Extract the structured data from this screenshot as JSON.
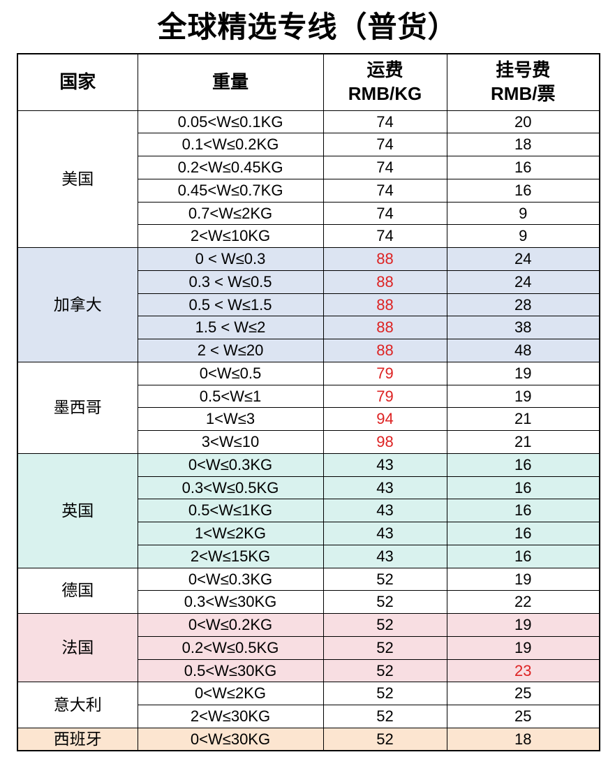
{
  "title": "全球精选专线（普货）",
  "header": {
    "country": "国家",
    "weight": "重量",
    "rate_line1": "运费",
    "rate_line2": "RMB/KG",
    "reg_line1": "挂号费",
    "reg_line2": "RMB/票"
  },
  "colors": {
    "red_text": "#dd2222",
    "canada_bg": "#dce4f2",
    "uk_bg": "#d9f2ee",
    "france_bg": "#f8dee2",
    "spain_bg": "#fce5d0",
    "default_bg": "#ffffff",
    "border": "#000000"
  },
  "groups": [
    {
      "country": "美国",
      "bg": "#ffffff",
      "rows": [
        {
          "weight": "0.05<W≤0.1KG",
          "rate": "74",
          "rate_red": false,
          "reg": "20",
          "reg_red": false
        },
        {
          "weight": "0.1<W≤0.2KG",
          "rate": "74",
          "rate_red": false,
          "reg": "18",
          "reg_red": false
        },
        {
          "weight": "0.2<W≤0.45KG",
          "rate": "74",
          "rate_red": false,
          "reg": "16",
          "reg_red": false
        },
        {
          "weight": "0.45<W≤0.7KG",
          "rate": "74",
          "rate_red": false,
          "reg": "16",
          "reg_red": false
        },
        {
          "weight": "0.7<W≤2KG",
          "rate": "74",
          "rate_red": false,
          "reg": "9",
          "reg_red": false
        },
        {
          "weight": "2<W≤10KG",
          "rate": "74",
          "rate_red": false,
          "reg": "9",
          "reg_red": false
        }
      ]
    },
    {
      "country": "加拿大",
      "bg": "#dce4f2",
      "rows": [
        {
          "weight": "0 < W≤0.3",
          "rate": "88",
          "rate_red": true,
          "reg": "24",
          "reg_red": false
        },
        {
          "weight": "0.3 < W≤0.5",
          "rate": "88",
          "rate_red": true,
          "reg": "24",
          "reg_red": false
        },
        {
          "weight": "0.5 < W≤1.5",
          "rate": "88",
          "rate_red": true,
          "reg": "28",
          "reg_red": false
        },
        {
          "weight": "1.5 < W≤2",
          "rate": "88",
          "rate_red": true,
          "reg": "38",
          "reg_red": false
        },
        {
          "weight": "2 < W≤20",
          "rate": "88",
          "rate_red": true,
          "reg": "48",
          "reg_red": false
        }
      ]
    },
    {
      "country": "墨西哥",
      "bg": "#ffffff",
      "rows": [
        {
          "weight": "0<W≤0.5",
          "rate": "79",
          "rate_red": true,
          "reg": "19",
          "reg_red": false
        },
        {
          "weight": "0.5<W≤1",
          "rate": "79",
          "rate_red": true,
          "reg": "19",
          "reg_red": false
        },
        {
          "weight": "1<W≤3",
          "rate": "94",
          "rate_red": true,
          "reg": "21",
          "reg_red": false
        },
        {
          "weight": "3<W≤10",
          "rate": "98",
          "rate_red": true,
          "reg": "21",
          "reg_red": false
        }
      ]
    },
    {
      "country": "英国",
      "bg": "#d9f2ee",
      "rows": [
        {
          "weight": "0<W≤0.3KG",
          "rate": "43",
          "rate_red": false,
          "reg": "16",
          "reg_red": false
        },
        {
          "weight": "0.3<W≤0.5KG",
          "rate": "43",
          "rate_red": false,
          "reg": "16",
          "reg_red": false
        },
        {
          "weight": "0.5<W≤1KG",
          "rate": "43",
          "rate_red": false,
          "reg": "16",
          "reg_red": false
        },
        {
          "weight": "1<W≤2KG",
          "rate": "43",
          "rate_red": false,
          "reg": "16",
          "reg_red": false
        },
        {
          "weight": "2<W≤15KG",
          "rate": "43",
          "rate_red": false,
          "reg": "16",
          "reg_red": false
        }
      ]
    },
    {
      "country": "德国",
      "bg": "#ffffff",
      "rows": [
        {
          "weight": "0<W≤0.3KG",
          "rate": "52",
          "rate_red": false,
          "reg": "19",
          "reg_red": false
        },
        {
          "weight": "0.3<W≤30KG",
          "rate": "52",
          "rate_red": false,
          "reg": "22",
          "reg_red": false
        }
      ]
    },
    {
      "country": "法国",
      "bg": "#f8dee2",
      "rows": [
        {
          "weight": "0<W≤0.2KG",
          "rate": "52",
          "rate_red": false,
          "reg": "19",
          "reg_red": false
        },
        {
          "weight": "0.2<W≤0.5KG",
          "rate": "52",
          "rate_red": false,
          "reg": "19",
          "reg_red": false
        },
        {
          "weight": "0.5<W≤30KG",
          "rate": "52",
          "rate_red": false,
          "reg": "23",
          "reg_red": true
        }
      ]
    },
    {
      "country": "意大利",
      "bg": "#ffffff",
      "rows": [
        {
          "weight": "0<W≤2KG",
          "rate": "52",
          "rate_red": false,
          "reg": "25",
          "reg_red": false
        },
        {
          "weight": "2<W≤30KG",
          "rate": "52",
          "rate_red": false,
          "reg": "25",
          "reg_red": false
        }
      ]
    },
    {
      "country": "西班牙",
      "bg": "#fce5d0",
      "rows": [
        {
          "weight": "0<W≤30KG",
          "rate": "52",
          "rate_red": false,
          "reg": "18",
          "reg_red": false
        }
      ]
    }
  ]
}
